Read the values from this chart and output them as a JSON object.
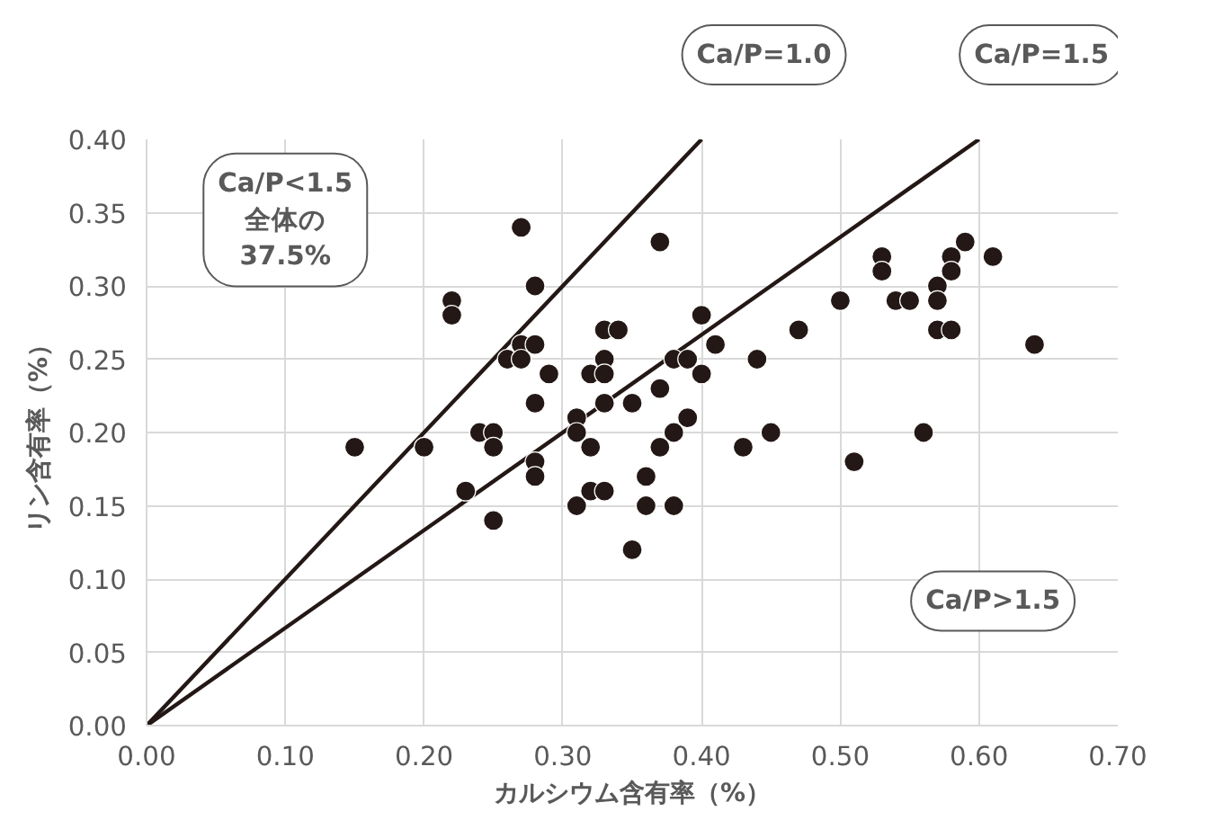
{
  "chart_data": {
    "type": "scatter",
    "xlabel": "カルシウム含有率（%）",
    "ylabel": "リン含有率（%）",
    "xlim": [
      0,
      0.7
    ],
    "ylim": [
      0,
      0.4
    ],
    "xticks": [
      {
        "value": 0,
        "label": "0.00"
      },
      {
        "value": 0.1,
        "label": "0.10"
      },
      {
        "value": 0.2,
        "label": "0.20"
      },
      {
        "value": 0.3,
        "label": "0.30"
      },
      {
        "value": 0.4,
        "label": "0.40"
      },
      {
        "value": 0.5,
        "label": "0.50"
      },
      {
        "value": 0.6,
        "label": "0.60"
      },
      {
        "value": 0.7,
        "label": "0.70"
      }
    ],
    "yticks": [
      {
        "value": 0,
        "label": "0.00"
      },
      {
        "value": 0.05,
        "label": "0.05"
      },
      {
        "value": 0.1,
        "label": "0.10"
      },
      {
        "value": 0.15,
        "label": "0.15"
      },
      {
        "value": 0.2,
        "label": "0.20"
      },
      {
        "value": 0.25,
        "label": "0.25"
      },
      {
        "value": 0.3,
        "label": "0.30"
      },
      {
        "value": 0.35,
        "label": "0.35"
      },
      {
        "value": 0.4,
        "label": "0.40"
      }
    ],
    "grid": true,
    "marker": "circle",
    "annotations": [
      "Ca/P<1.5\n全体の\n37.5%",
      "Ca/P>1.5"
    ],
    "series": [
      {
        "color": "#231815",
        "x": [
          0.27,
          0.28,
          0.22,
          0.22,
          0.27,
          0.28,
          0.26,
          0.27,
          0.28,
          0.15,
          0.2,
          0.24,
          0.25,
          0.25,
          0.28,
          0.28,
          0.23,
          0.25,
          0.29,
          0.37,
          0.4,
          0.33,
          0.34,
          0.41,
          0.33,
          0.38,
          0.39,
          0.44,
          0.32,
          0.33,
          0.4,
          0.37,
          0.33,
          0.35,
          0.31,
          0.31,
          0.39,
          0.38,
          0.32,
          0.37,
          0.43,
          0.45,
          0.36,
          0.32,
          0.33,
          0.31,
          0.36,
          0.38,
          0.35,
          0.5,
          0.47,
          0.53,
          0.53,
          0.54,
          0.55,
          0.57,
          0.57,
          0.58,
          0.58,
          0.59,
          0.61,
          0.57,
          0.58,
          0.64,
          0.56,
          0.51
        ],
        "values": [
          0.34,
          0.3,
          0.29,
          0.28,
          0.26,
          0.26,
          0.25,
          0.25,
          0.22,
          0.19,
          0.19,
          0.2,
          0.2,
          0.19,
          0.18,
          0.17,
          0.16,
          0.14,
          0.24,
          0.33,
          0.28,
          0.27,
          0.27,
          0.26,
          0.25,
          0.25,
          0.25,
          0.25,
          0.24,
          0.24,
          0.24,
          0.23,
          0.22,
          0.22,
          0.21,
          0.2,
          0.21,
          0.2,
          0.19,
          0.19,
          0.19,
          0.2,
          0.17,
          0.16,
          0.16,
          0.15,
          0.15,
          0.15,
          0.12,
          0.29,
          0.27,
          0.32,
          0.31,
          0.29,
          0.29,
          0.3,
          0.29,
          0.32,
          0.31,
          0.33,
          0.32,
          0.27,
          0.27,
          0.26,
          0.2,
          0.18
        ]
      },
      {
        "type": "line",
        "name": "Ca/P=1.0",
        "marker": "none",
        "color": "#231815",
        "x": [
          0,
          0.4
        ],
        "values": [
          0,
          0.4
        ]
      },
      {
        "type": "line",
        "name": "Ca/P=1.5",
        "marker": "none",
        "color": "#231815",
        "x": [
          0,
          0.6
        ],
        "values": [
          0,
          0.4
        ]
      }
    ]
  }
}
